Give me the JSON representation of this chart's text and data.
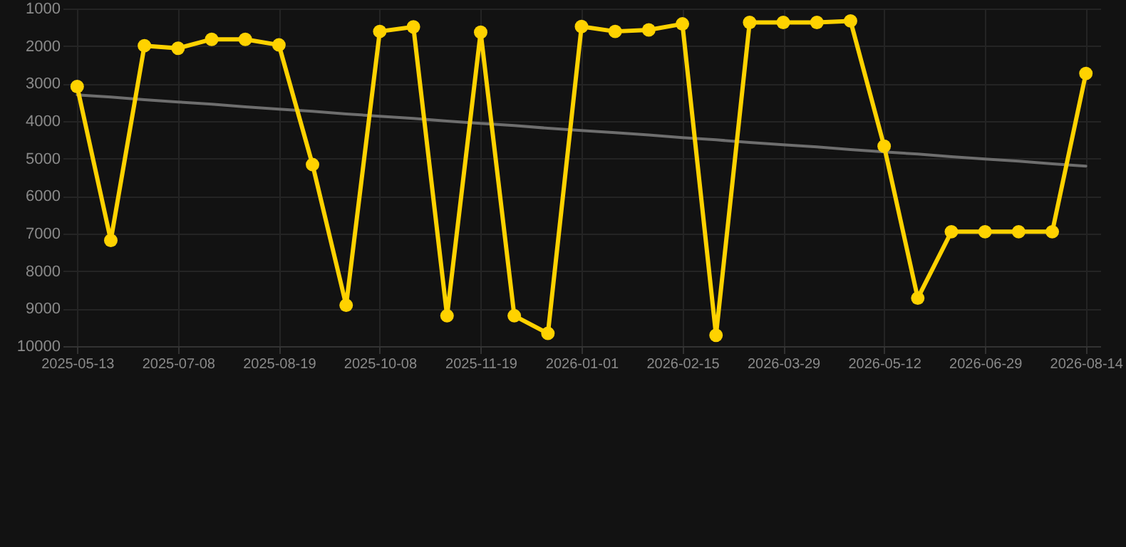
{
  "chart_data": {
    "type": "line",
    "categories": [
      "2025-05-13",
      null,
      null,
      "2025-07-08",
      null,
      null,
      "2025-08-19",
      null,
      null,
      "2025-10-08",
      null,
      null,
      "2025-11-19",
      null,
      null,
      "2026-01-01",
      null,
      null,
      "2026-02-15",
      null,
      null,
      "2026-03-29",
      null,
      null,
      "2026-05-12",
      null,
      null,
      "2026-06-29",
      null,
      null,
      "2026-08-14"
    ],
    "ylim": [
      10000,
      1000
    ],
    "yticks": [
      1000,
      2000,
      3000,
      4000,
      5000,
      6000,
      7000,
      8000,
      9000,
      10000
    ],
    "grid": true,
    "marker": "circle",
    "line_style": "solid",
    "series": [
      {
        "color": "#ffd200",
        "values": [
          3080,
          7180,
          1990,
          2060,
          1820,
          1820,
          1970,
          5160,
          8910,
          1610,
          1490,
          9190,
          1630,
          9190,
          9660,
          1480,
          1610,
          1570,
          1410,
          9710,
          1370,
          1370,
          1370,
          1330,
          4670,
          8720,
          6950,
          6950,
          6950,
          6950,
          2730
        ]
      },
      {
        "type": "line",
        "color": "#6e6e6e",
        "marker": "none",
        "values": [
          3300,
          3360,
          3430,
          3490,
          3550,
          3620,
          3680,
          3740,
          3810,
          3870,
          3930,
          4000,
          4060,
          4120,
          4190,
          4250,
          4310,
          4370,
          4440,
          4500,
          4570,
          4630,
          4690,
          4760,
          4820,
          4880,
          4950,
          5010,
          5070,
          5140,
          5200
        ]
      }
    ]
  }
}
